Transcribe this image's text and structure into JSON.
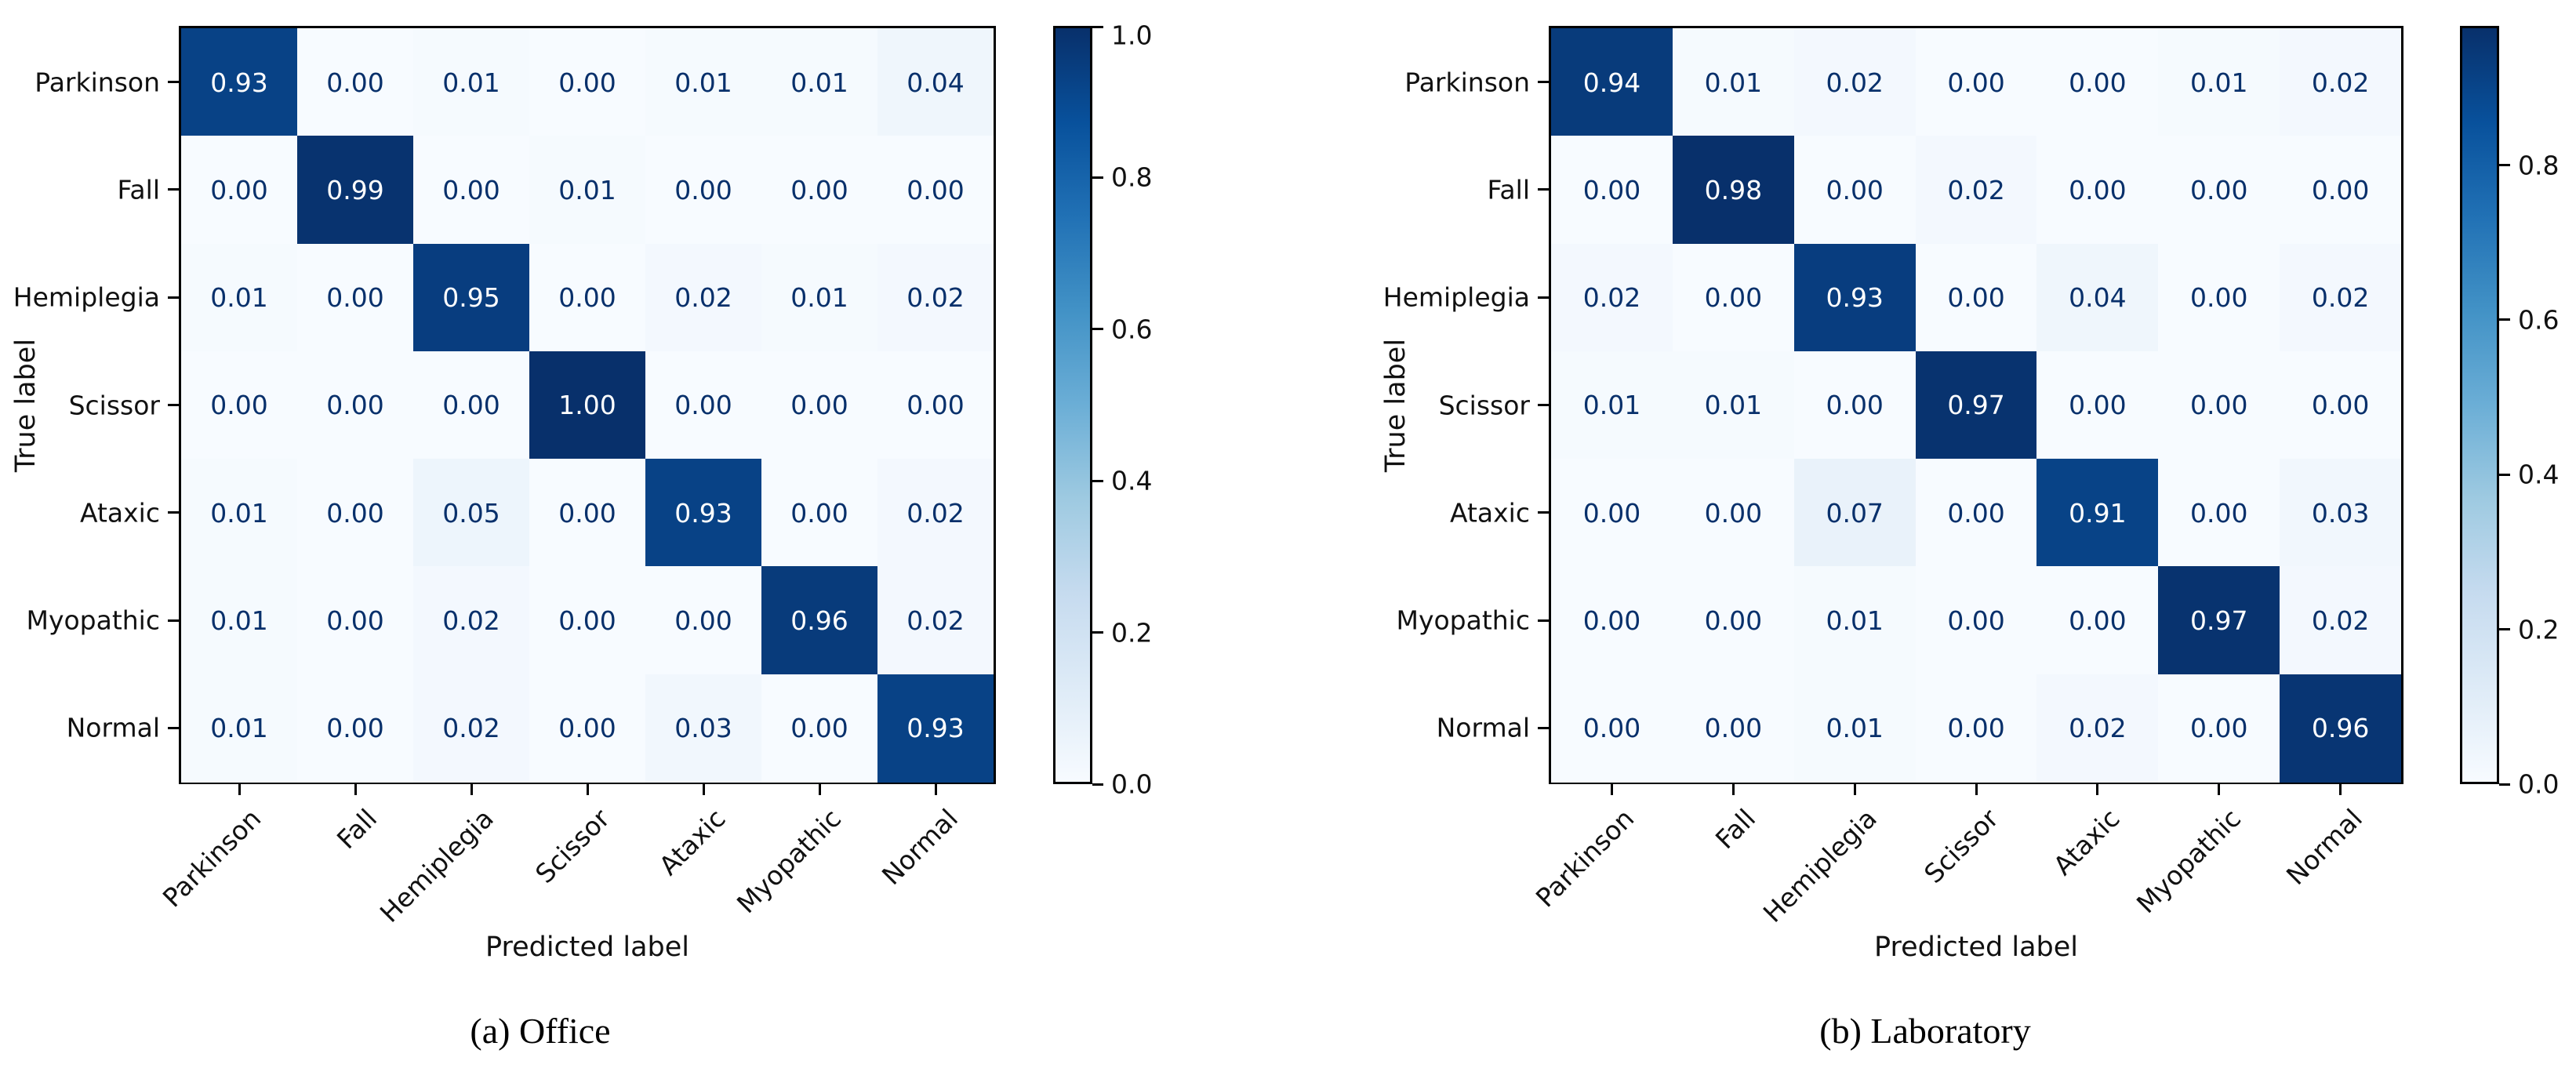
{
  "figure": {
    "background": "#ffffff",
    "colormap": {
      "name": "Blues",
      "anchors": [
        "#f7fbff",
        "#deebf7",
        "#c6dbef",
        "#9ecae1",
        "#6baed6",
        "#4292c6",
        "#2171b5",
        "#08519c",
        "#08306b"
      ]
    },
    "cell_text_colors": {
      "light_cell": "#08306b",
      "dark_cell": "#ffffff"
    },
    "spine_color": "#000000"
  },
  "chart_data": [
    {
      "type": "heatmap",
      "caption": "(a) Office",
      "xlabel": "Predicted label",
      "ylabel": "True label",
      "categories": [
        "Parkinson",
        "Fall",
        "Hemiplegia",
        "Scissor",
        "Ataxic",
        "Myopathic",
        "Normal"
      ],
      "matrix": [
        [
          0.93,
          0.0,
          0.01,
          0.0,
          0.01,
          0.01,
          0.04
        ],
        [
          0.0,
          0.99,
          0.0,
          0.01,
          0.0,
          0.0,
          0.0
        ],
        [
          0.01,
          0.0,
          0.95,
          0.0,
          0.02,
          0.01,
          0.02
        ],
        [
          0.0,
          0.0,
          0.0,
          1.0,
          0.0,
          0.0,
          0.0
        ],
        [
          0.01,
          0.0,
          0.05,
          0.0,
          0.93,
          0.0,
          0.02
        ],
        [
          0.01,
          0.0,
          0.02,
          0.0,
          0.0,
          0.96,
          0.02
        ],
        [
          0.01,
          0.0,
          0.02,
          0.0,
          0.03,
          0.0,
          0.93
        ]
      ],
      "vmin": 0.0,
      "vmax": 1.0,
      "colorbar_ticks": [
        0.0,
        0.2,
        0.4,
        0.6,
        0.8,
        1.0
      ],
      "colorbar_tick_labels": [
        "0.0",
        "0.2",
        "0.4",
        "0.6",
        "0.8",
        "1.0"
      ],
      "grid": false,
      "value_decimals": 2
    },
    {
      "type": "heatmap",
      "caption": "(b) Laboratory",
      "xlabel": "Predicted label",
      "ylabel": "True label",
      "categories": [
        "Parkinson",
        "Fall",
        "Hemiplegia",
        "Scissor",
        "Ataxic",
        "Myopathic",
        "Normal"
      ],
      "matrix": [
        [
          0.94,
          0.01,
          0.02,
          0.0,
          0.0,
          0.01,
          0.02
        ],
        [
          0.0,
          0.98,
          0.0,
          0.02,
          0.0,
          0.0,
          0.0
        ],
        [
          0.02,
          0.0,
          0.93,
          0.0,
          0.04,
          0.0,
          0.02
        ],
        [
          0.01,
          0.01,
          0.0,
          0.97,
          0.0,
          0.0,
          0.0
        ],
        [
          0.0,
          0.0,
          0.07,
          0.0,
          0.91,
          0.0,
          0.03
        ],
        [
          0.0,
          0.0,
          0.01,
          0.0,
          0.0,
          0.97,
          0.02
        ],
        [
          0.0,
          0.0,
          0.01,
          0.0,
          0.02,
          0.0,
          0.96
        ]
      ],
      "vmin": 0.0,
      "vmax": 0.98,
      "colorbar_ticks": [
        0.0,
        0.2,
        0.4,
        0.6,
        0.8
      ],
      "colorbar_tick_labels": [
        "0.0",
        "0.2",
        "0.4",
        "0.6",
        "0.8"
      ],
      "grid": false,
      "value_decimals": 2
    }
  ]
}
